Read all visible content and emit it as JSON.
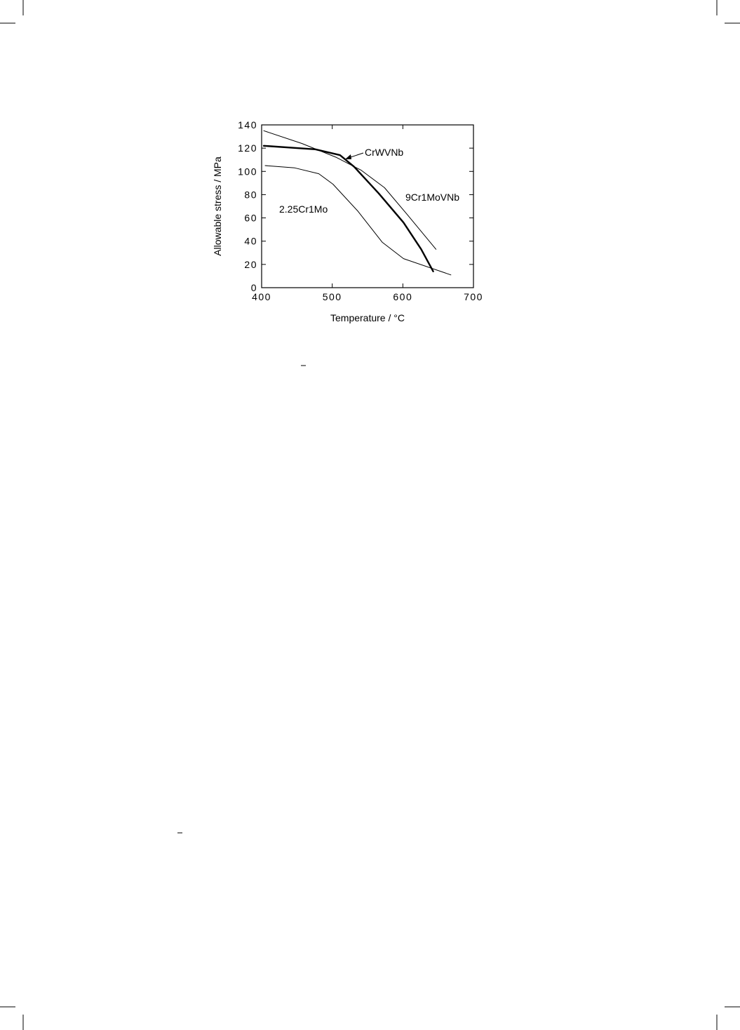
{
  "chart_data": {
    "type": "line",
    "x_label": "Temperature / °C",
    "y_label": "Allowable stress / MPa",
    "xlim": [
      400,
      700
    ],
    "xticks": [
      400,
      500,
      600,
      700
    ],
    "ylim": [
      0,
      140
    ],
    "yticks": [
      0,
      20,
      40,
      60,
      80,
      100,
      120,
      140
    ],
    "series": [
      {
        "name": "9Cr1MoVNb",
        "color": "#000000",
        "width": 1,
        "x": [
          403,
          457,
          506,
          541,
          574,
          606,
          647
        ],
        "values": [
          135,
          124,
          112,
          101,
          86,
          63,
          33
        ]
      },
      {
        "name": "CrWVNb",
        "color": "#000000",
        "width": 2.4,
        "x": [
          403,
          476,
          511,
          531,
          566,
          601,
          626,
          643
        ],
        "values": [
          122,
          119,
          114,
          104,
          81,
          56,
          33,
          14
        ]
      },
      {
        "name": "2.25Cr1Mo",
        "color": "#000000",
        "width": 1,
        "x": [
          405,
          447,
          481,
          501,
          536,
          571,
          601,
          668
        ],
        "values": [
          105,
          103,
          98,
          89,
          66,
          39,
          25,
          11
        ]
      }
    ]
  }
}
